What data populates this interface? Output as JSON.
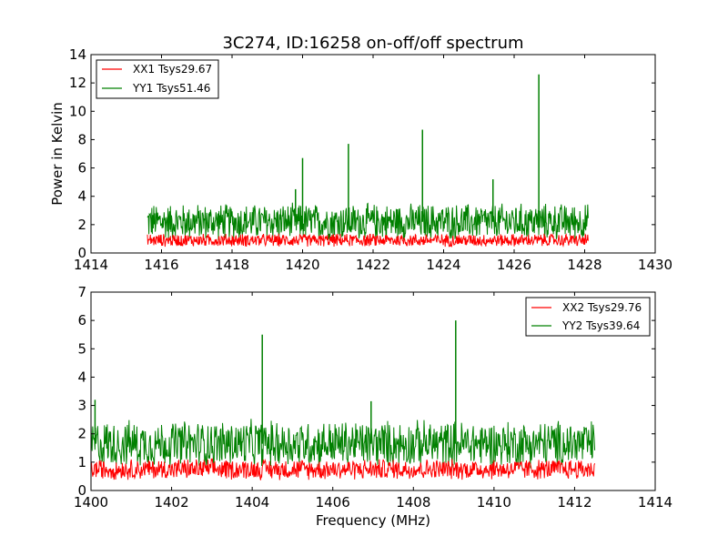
{
  "title": "3C274, ID:16258 on-off/off spectrum",
  "colors": {
    "red": "#ff0000",
    "green": "#008000",
    "frame": "#000000"
  },
  "chart_data": [
    {
      "type": "line",
      "title": "3C274, ID:16258 on-off/off spectrum",
      "xlabel": "",
      "ylabel": "Power in Kelvin",
      "xlim": [
        1414,
        1430
      ],
      "ylim": [
        0,
        14
      ],
      "xticks": [
        "1414",
        "1416",
        "1418",
        "1420",
        "1422",
        "1424",
        "1426",
        "1428",
        "1430"
      ],
      "yticks": [
        "0",
        "2",
        "4",
        "6",
        "8",
        "10",
        "12",
        "14"
      ],
      "legend_position": "top-left",
      "data_range": [
        1415.6,
        1428.1
      ],
      "series": [
        {
          "name": "XX1 Tsys29.67",
          "color": "#ff0000",
          "mean": 0.9,
          "noise": 0.5,
          "min": 0.05,
          "max": 1.8,
          "spikes": []
        },
        {
          "name": "YY1 Tsys51.46",
          "color": "#008000",
          "mean": 2.2,
          "noise": 1.4,
          "min": 0.3,
          "max": 4.0,
          "spikes": [
            [
              1419.8,
              4.5
            ],
            [
              1420.0,
              6.7
            ],
            [
              1421.3,
              7.7
            ],
            [
              1423.4,
              8.7
            ],
            [
              1425.4,
              5.2
            ],
            [
              1426.7,
              12.6
            ]
          ]
        }
      ]
    },
    {
      "type": "line",
      "title": "",
      "xlabel": "Frequency (MHz)",
      "ylabel": "",
      "xlim": [
        1400,
        1414
      ],
      "ylim": [
        0,
        7
      ],
      "xticks": [
        "1400",
        "1402",
        "1404",
        "1406",
        "1408",
        "1410",
        "1412",
        "1414"
      ],
      "yticks": [
        "0",
        "1",
        "2",
        "3",
        "4",
        "5",
        "6",
        "7"
      ],
      "legend_position": "top-right",
      "data_range": [
        1400.0,
        1412.5
      ],
      "series": [
        {
          "name": "XX2 Tsys29.76",
          "color": "#ff0000",
          "mean": 0.75,
          "noise": 0.4,
          "min": 0.05,
          "max": 1.5,
          "spikes": []
        },
        {
          "name": "YY2 Tsys39.64",
          "color": "#008000",
          "mean": 1.65,
          "noise": 0.9,
          "min": 0.3,
          "max": 3.0,
          "spikes": [
            [
              1400.1,
              3.2
            ],
            [
              1404.25,
              5.5
            ],
            [
              1406.95,
              3.15
            ],
            [
              1409.05,
              6.0
            ]
          ]
        }
      ]
    }
  ]
}
